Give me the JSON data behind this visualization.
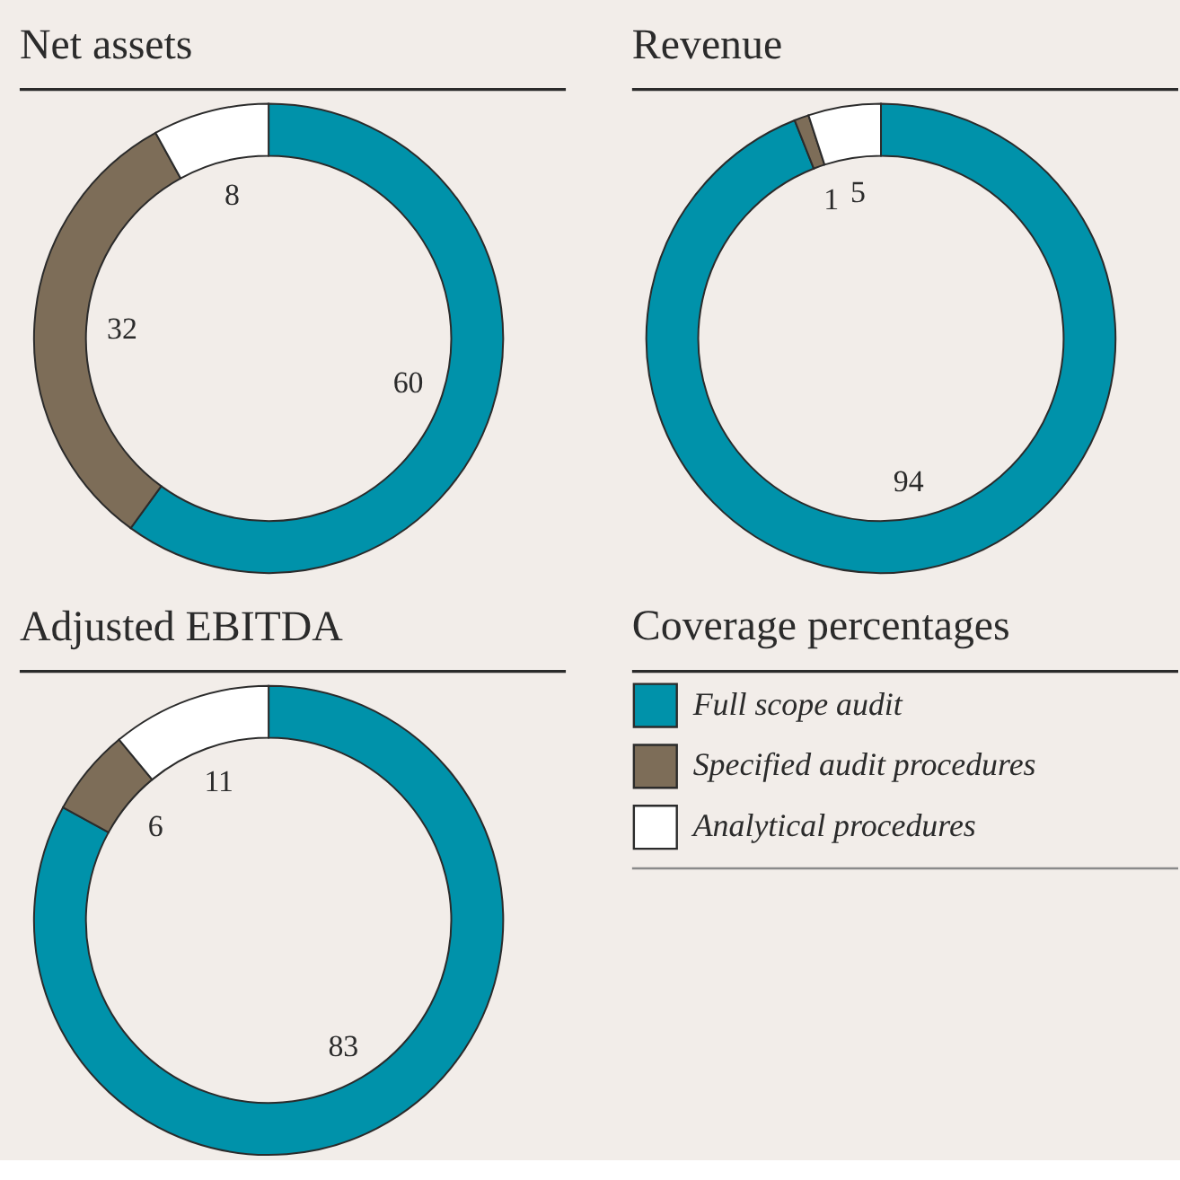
{
  "chart_data": [
    {
      "type": "donut",
      "title": "Net assets",
      "categories": [
        "Full scope audit",
        "Specified audit procedures",
        "Analytical procedures"
      ],
      "values": [
        60,
        32,
        8
      ],
      "colors": [
        "#0092aa",
        "#7d6d58",
        "#ffffff"
      ],
      "data_labels": true,
      "legend": "bottom right",
      "legend_title": "Coverage percentages"
    },
    {
      "type": "donut",
      "title": "Revenue",
      "categories": [
        null,
        null,
        null
      ],
      "values": [
        94,
        1,
        5
      ],
      "colors": [
        "#0092aa",
        "#7d6d58",
        "#ffffff"
      ],
      "data_labels": true
    },
    {
      "type": "donut",
      "title": "Adjusted EBITDA",
      "categories": [
        null,
        null,
        null
      ],
      "values": [
        83,
        6,
        11
      ],
      "colors": [
        "#0092aa",
        "#7d6d58",
        "#ffffff"
      ],
      "data_labels": true
    }
  ]
}
